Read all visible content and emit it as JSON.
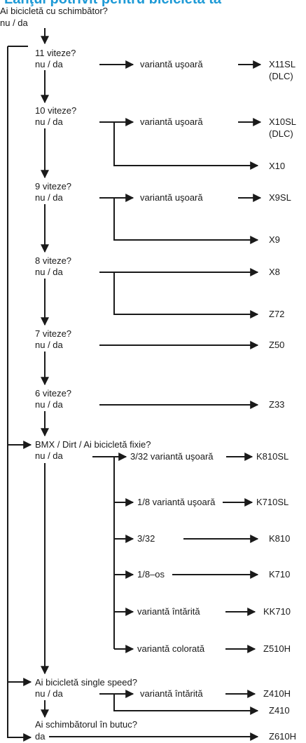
{
  "title": "Lanţul potrivit pentru bicicleta ta",
  "start": {
    "question": "Ai bicicletă cu schimbător?",
    "answer": "nu / da"
  },
  "nodes": [
    {
      "id": "q11",
      "question": "11 viteze?",
      "answer": "nu / da"
    },
    {
      "id": "q10",
      "question": "10 viteze?",
      "answer": "nu / da"
    },
    {
      "id": "q9",
      "question": "9 viteze?",
      "answer": "nu / da"
    },
    {
      "id": "q8",
      "question": "8 viteze?",
      "answer": "nu / da"
    },
    {
      "id": "q7",
      "question": "7 viteze?",
      "answer": "nu / da"
    },
    {
      "id": "q6",
      "question": "6 viteze?",
      "answer": "nu / da"
    },
    {
      "id": "qbmx",
      "question": "BMX / Dirt / Ai bicicletă fixie?",
      "answer": "nu / da"
    },
    {
      "id": "qss",
      "question": "Ai bicicletă single speed?",
      "answer": "nu / da"
    },
    {
      "id": "qhub",
      "question": "Ai schimbătorul în butuc?",
      "answer": "da"
    }
  ],
  "options": [
    {
      "id": "o11",
      "label": "variantă uşoară"
    },
    {
      "id": "o10",
      "label": "variantă uşoară"
    },
    {
      "id": "o9",
      "label": "variantă uşoară"
    },
    {
      "id": "ob1",
      "label": "3/32 variantă uşoară"
    },
    {
      "id": "ob2",
      "label": "1/8 variantă uşoară"
    },
    {
      "id": "ob3",
      "label": "3/32"
    },
    {
      "id": "ob4",
      "label": "1/8–os"
    },
    {
      "id": "ob5",
      "label": "variantă întărită"
    },
    {
      "id": "ob6",
      "label": "variantă colorată"
    },
    {
      "id": "os1",
      "label": "variantă întărită"
    }
  ],
  "results": [
    {
      "id": "r_x11sl",
      "label": "X11SL",
      "sub": "(DLC)"
    },
    {
      "id": "r_x10sl",
      "label": "X10SL",
      "sub": "(DLC)"
    },
    {
      "id": "r_x10",
      "label": "X10"
    },
    {
      "id": "r_x9sl",
      "label": "X9SL"
    },
    {
      "id": "r_x9",
      "label": "X9"
    },
    {
      "id": "r_x8",
      "label": "X8"
    },
    {
      "id": "r_z72",
      "label": "Z72"
    },
    {
      "id": "r_z50",
      "label": "Z50"
    },
    {
      "id": "r_z33",
      "label": "Z33"
    },
    {
      "id": "r_k810sl",
      "label": "K810SL"
    },
    {
      "id": "r_k710sl",
      "label": "K710SL"
    },
    {
      "id": "r_k810",
      "label": "K810"
    },
    {
      "id": "r_k710",
      "label": "K710"
    },
    {
      "id": "r_kk710",
      "label": "KK710"
    },
    {
      "id": "r_z510h",
      "label": "Z510H"
    },
    {
      "id": "r_z410h",
      "label": "Z410H"
    },
    {
      "id": "r_z410",
      "label": "Z410"
    },
    {
      "id": "r_z610h",
      "label": "Z610H"
    }
  ]
}
